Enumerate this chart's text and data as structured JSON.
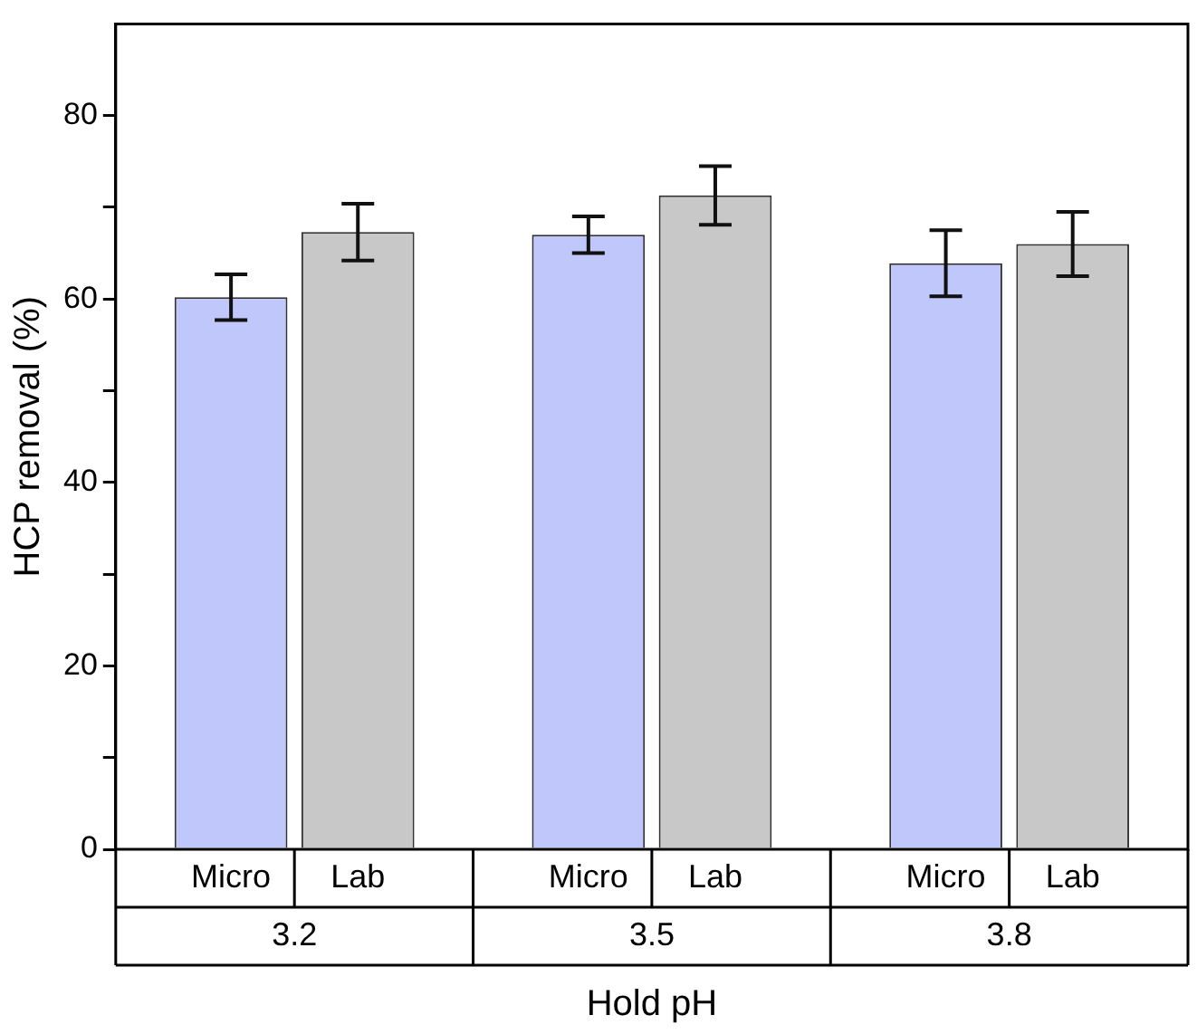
{
  "chart_data": {
    "type": "bar",
    "xlabel": "Hold pH",
    "ylabel": "HCP removal (%)",
    "categories": [
      "3.2",
      "3.5",
      "3.8"
    ],
    "series": [
      {
        "name": "Micro",
        "color": "#bfc7fb",
        "values": [
          60.2,
          67.0,
          63.9
        ],
        "errors": [
          2.5,
          2.0,
          3.6
        ]
      },
      {
        "name": "Lab",
        "color": "#c8c8c8",
        "values": [
          67.3,
          71.3,
          66.0
        ],
        "errors": [
          3.1,
          3.2,
          3.5
        ]
      }
    ],
    "ylim": [
      0,
      90
    ],
    "yticks": [
      0,
      {
        "value": 10,
        "label": null
      },
      20,
      {
        "value": 30,
        "label": null
      },
      40,
      {
        "value": 50,
        "label": null
      },
      60,
      {
        "value": 70,
        "label": null
      },
      80
    ],
    "grid": false,
    "legend": false
  }
}
